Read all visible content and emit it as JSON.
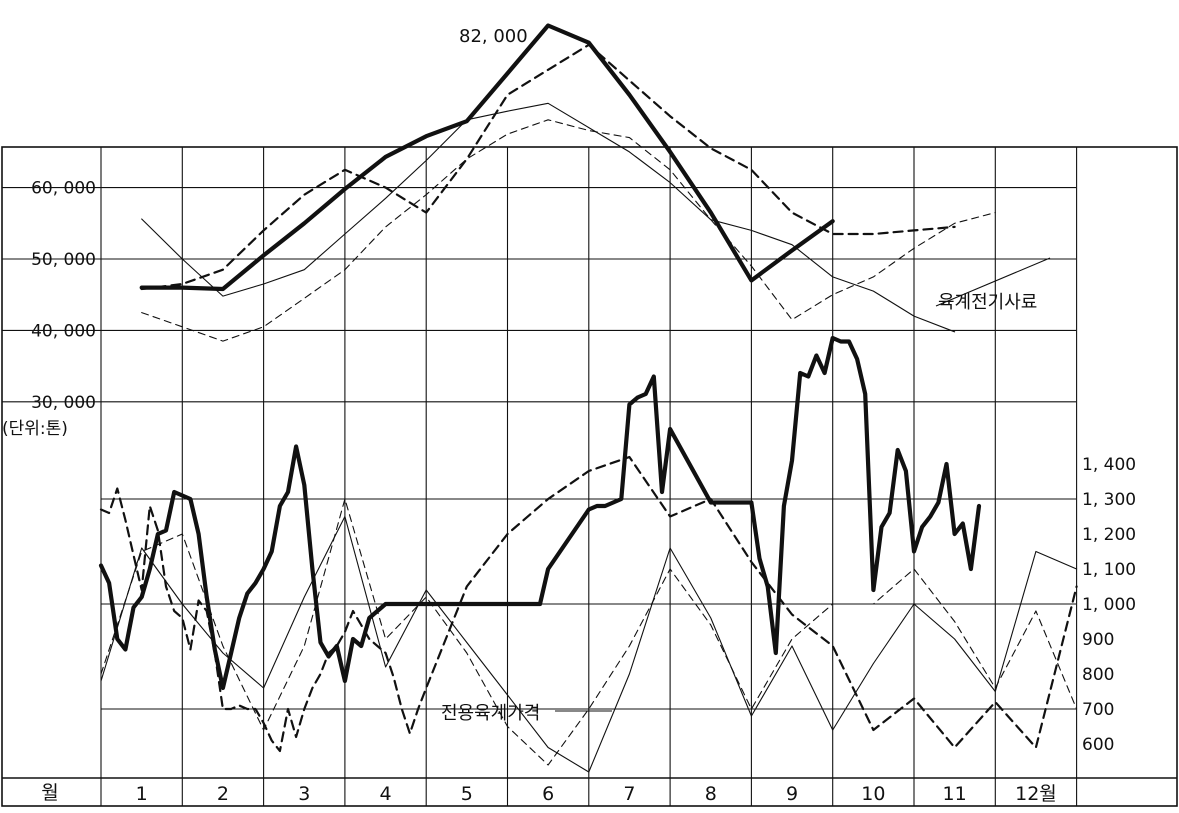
{
  "chart_data": {
    "type": "line",
    "title": "",
    "grid": true,
    "x_axis": {
      "corner_label": "월",
      "ticks": [
        "1",
        "2",
        "3",
        "4",
        "5",
        "6",
        "7",
        "8",
        "9",
        "10",
        "11",
        "12월"
      ]
    },
    "left_axis": {
      "unit_label": "(단위:톤)",
      "ticks": [
        {
          "label": "60, 000",
          "value": 60000
        },
        {
          "label": "50, 000",
          "value": 50000
        },
        {
          "label": "40, 000",
          "value": 40000
        },
        {
          "label": "30, 000",
          "value": 30000
        }
      ]
    },
    "right_axis": {
      "ticks": [
        {
          "label": "1, 400",
          "value": 1400
        },
        {
          "label": "1, 300",
          "value": 1300
        },
        {
          "label": "1, 200",
          "value": 1200
        },
        {
          "label": "1, 100",
          "value": 1100
        },
        {
          "label": "1, 000",
          "value": 1000
        },
        {
          "label": "900",
          "value": 900
        },
        {
          "label": "800",
          "value": 800
        },
        {
          "label": "700",
          "value": 700
        },
        {
          "label": "600",
          "value": 600
        }
      ]
    },
    "annotations": {
      "peak_label": "82, 000",
      "upper_series_label": "육계전기사료",
      "lower_series_label": "전용육계가격"
    },
    "upper_series": [
      {
        "style": "thick-solid",
        "x": [
          0.5,
          1.0,
          1.5,
          2.0,
          2.5,
          3.0,
          3.5,
          4.0,
          4.5,
          5.0,
          5.5,
          6.0,
          6.5,
          7.0,
          7.5,
          8.0,
          8.5,
          9.0,
          9.5
        ],
        "values": [
          46000,
          46000,
          45800,
          50500,
          55000,
          59800,
          64300,
          67200,
          69300,
          76000,
          82700,
          80300,
          73000,
          65000,
          56500,
          47000,
          51200,
          55300,
          null
        ]
      },
      {
        "style": "dashed",
        "x": [
          0.5,
          1.0,
          1.5,
          2.0,
          2.5,
          3.0,
          3.5,
          4.0,
          4.5,
          5.0,
          5.5,
          6.0,
          6.5,
          7.0,
          7.5,
          8.0,
          8.5,
          9.0,
          9.5,
          10.0,
          10.5,
          11.0
        ],
        "values": [
          45800,
          46500,
          48500,
          54000,
          59000,
          62500,
          60000,
          56500,
          64000,
          73000,
          76500,
          80000,
          75000,
          70000,
          65500,
          62500,
          56500,
          53500,
          53500,
          54000,
          54500,
          null
        ]
      },
      {
        "style": "thin-solid",
        "x": [
          0.5,
          1.0,
          1.5,
          2.0,
          2.5,
          3.0,
          3.5,
          4.0,
          4.5,
          5.0,
          5.5,
          6.0,
          6.5,
          7.0,
          7.5,
          8.0,
          8.5,
          9.0,
          9.5,
          10.0,
          10.5
        ],
        "values": [
          55600,
          50000,
          44800,
          46500,
          48500,
          53500,
          58500,
          63800,
          69500,
          70700,
          71800,
          68400,
          65000,
          60700,
          55500,
          54000,
          52000,
          47500,
          45500,
          42000,
          39800
        ]
      },
      {
        "style": "thin-dashed",
        "x": [
          0.5,
          1.0,
          1.5,
          2.0,
          2.5,
          3.0,
          3.5,
          4.0,
          4.5,
          5.0,
          5.5,
          6.0,
          6.5,
          7.0,
          7.5,
          8.0,
          8.5,
          9.0,
          9.5,
          10.0,
          10.5,
          11.0
        ],
        "values": [
          42500,
          40500,
          38500,
          40500,
          44500,
          48500,
          54500,
          59000,
          64000,
          67500,
          69500,
          68000,
          67000,
          62500,
          55500,
          49000,
          41500,
          45000,
          47500,
          51500,
          55000,
          56500
        ]
      }
    ],
    "lower_series": [
      {
        "style": "thick-solid",
        "x": [
          0.0,
          0.1,
          0.2,
          0.3,
          0.4,
          0.5,
          0.6,
          0.7,
          0.8,
          0.9,
          1.0,
          1.1,
          1.2,
          1.3,
          1.4,
          1.5,
          1.6,
          1.7,
          1.8,
          1.9,
          2.0,
          2.1,
          2.2,
          2.3,
          2.4,
          2.5,
          2.6,
          2.7,
          2.8,
          2.9,
          3.0,
          3.1,
          3.2,
          3.3,
          3.4,
          3.5,
          3.6,
          3.7,
          3.8,
          3.9,
          4.0,
          4.5,
          5.0,
          5.4,
          5.5,
          6.0,
          6.1,
          6.2,
          6.3,
          6.4,
          6.5,
          6.6,
          6.7,
          6.8,
          6.9,
          7.0,
          7.5,
          8.0,
          8.1,
          8.2,
          8.3,
          8.4,
          8.5,
          8.6,
          8.7,
          8.8,
          8.9,
          9.0,
          9.1,
          9.2,
          9.3,
          9.4,
          9.5,
          9.6,
          9.7,
          9.8,
          9.9,
          10.0,
          10.1,
          10.2,
          10.3,
          10.4,
          10.5,
          10.6,
          10.7,
          10.8
        ],
        "values": [
          1110,
          1060,
          900,
          870,
          990,
          1020,
          1100,
          1200,
          1210,
          1320,
          1310,
          1300,
          1200,
          1020,
          870,
          760,
          860,
          960,
          1030,
          1060,
          1100,
          1150,
          1280,
          1320,
          1450,
          1340,
          1100,
          890,
          850,
          880,
          780,
          900,
          880,
          960,
          980,
          1000,
          1000,
          1000,
          1000,
          1000,
          1000,
          1000,
          1000,
          1000,
          1100,
          1270,
          1280,
          1280,
          1290,
          1300,
          1570,
          1590,
          1600,
          1650,
          1320,
          1500,
          1290,
          1290,
          1130,
          1050,
          860,
          1280,
          1410,
          1660,
          1650,
          1710,
          1660,
          1760,
          1750,
          1750,
          1700,
          1600,
          1040,
          1220,
          1260,
          1440,
          1380,
          1150,
          1220,
          1250,
          1290,
          1400,
          1200,
          1230,
          1100,
          1280
        ]
      },
      {
        "style": "dashed",
        "x": [
          0.0,
          0.1,
          0.2,
          0.3,
          0.4,
          0.5,
          0.6,
          0.7,
          0.8,
          0.9,
          1.0,
          1.1,
          1.2,
          1.3,
          1.4,
          1.5,
          1.6,
          1.7,
          1.8,
          1.9,
          2.0,
          2.1,
          2.2,
          2.3,
          2.4,
          2.5,
          2.6,
          2.7,
          2.8,
          2.9,
          3.0,
          3.1,
          3.2,
          3.3,
          3.4,
          3.5,
          3.6,
          3.7,
          3.8,
          3.9,
          4.0,
          4.5,
          5.0,
          5.5,
          6.0,
          6.5,
          7.0,
          7.5,
          8.0,
          8.5,
          9.0,
          9.5,
          10.0,
          10.5,
          11.0,
          11.5,
          12.0
        ],
        "values": [
          1270,
          1260,
          1330,
          1240,
          1140,
          1040,
          1280,
          1210,
          1050,
          980,
          960,
          870,
          1010,
          980,
          860,
          700,
          700,
          710,
          700,
          700,
          660,
          610,
          580,
          700,
          620,
          700,
          760,
          800,
          860,
          880,
          920,
          980,
          940,
          900,
          880,
          860,
          790,
          700,
          630,
          700,
          760,
          1050,
          1200,
          1300,
          1380,
          1420,
          1250,
          1300,
          1120,
          970,
          880,
          640,
          730,
          590,
          720,
          590,
          1050
        ]
      },
      {
        "style": "thin-solid",
        "x": [
          0.0,
          0.5,
          1.0,
          1.5,
          2.0,
          2.5,
          3.0,
          3.5,
          4.0,
          4.5,
          5.0,
          5.5,
          6.0,
          6.5,
          7.0,
          7.5,
          8.0,
          8.5,
          9.0,
          9.5,
          10.0,
          10.5,
          11.0,
          11.5,
          12.0
        ],
        "values": [
          780,
          1160,
          1000,
          860,
          760,
          1020,
          1250,
          820,
          1040,
          890,
          740,
          590,
          520,
          800,
          1160,
          960,
          680,
          880,
          640,
          830,
          1000,
          900,
          750,
          1150,
          1100
        ]
      },
      {
        "style": "thin-dashed",
        "x": [
          0.0,
          0.5,
          1.0,
          1.5,
          2.0,
          2.5,
          3.0,
          3.5,
          4.0,
          4.5,
          5.0,
          5.5,
          6.0,
          6.5,
          7.0,
          7.5,
          8.0,
          8.5,
          9.0,
          9.5,
          10.0,
          10.5,
          11.0,
          11.5,
          12.0
        ],
        "values": [
          800,
          1150,
          1200,
          880,
          640,
          880,
          1300,
          900,
          1020,
          860,
          650,
          540,
          700,
          880,
          1100,
          940,
          700,
          900,
          1000,
          1000,
          1100,
          950,
          760,
          980,
          700
        ]
      }
    ]
  }
}
